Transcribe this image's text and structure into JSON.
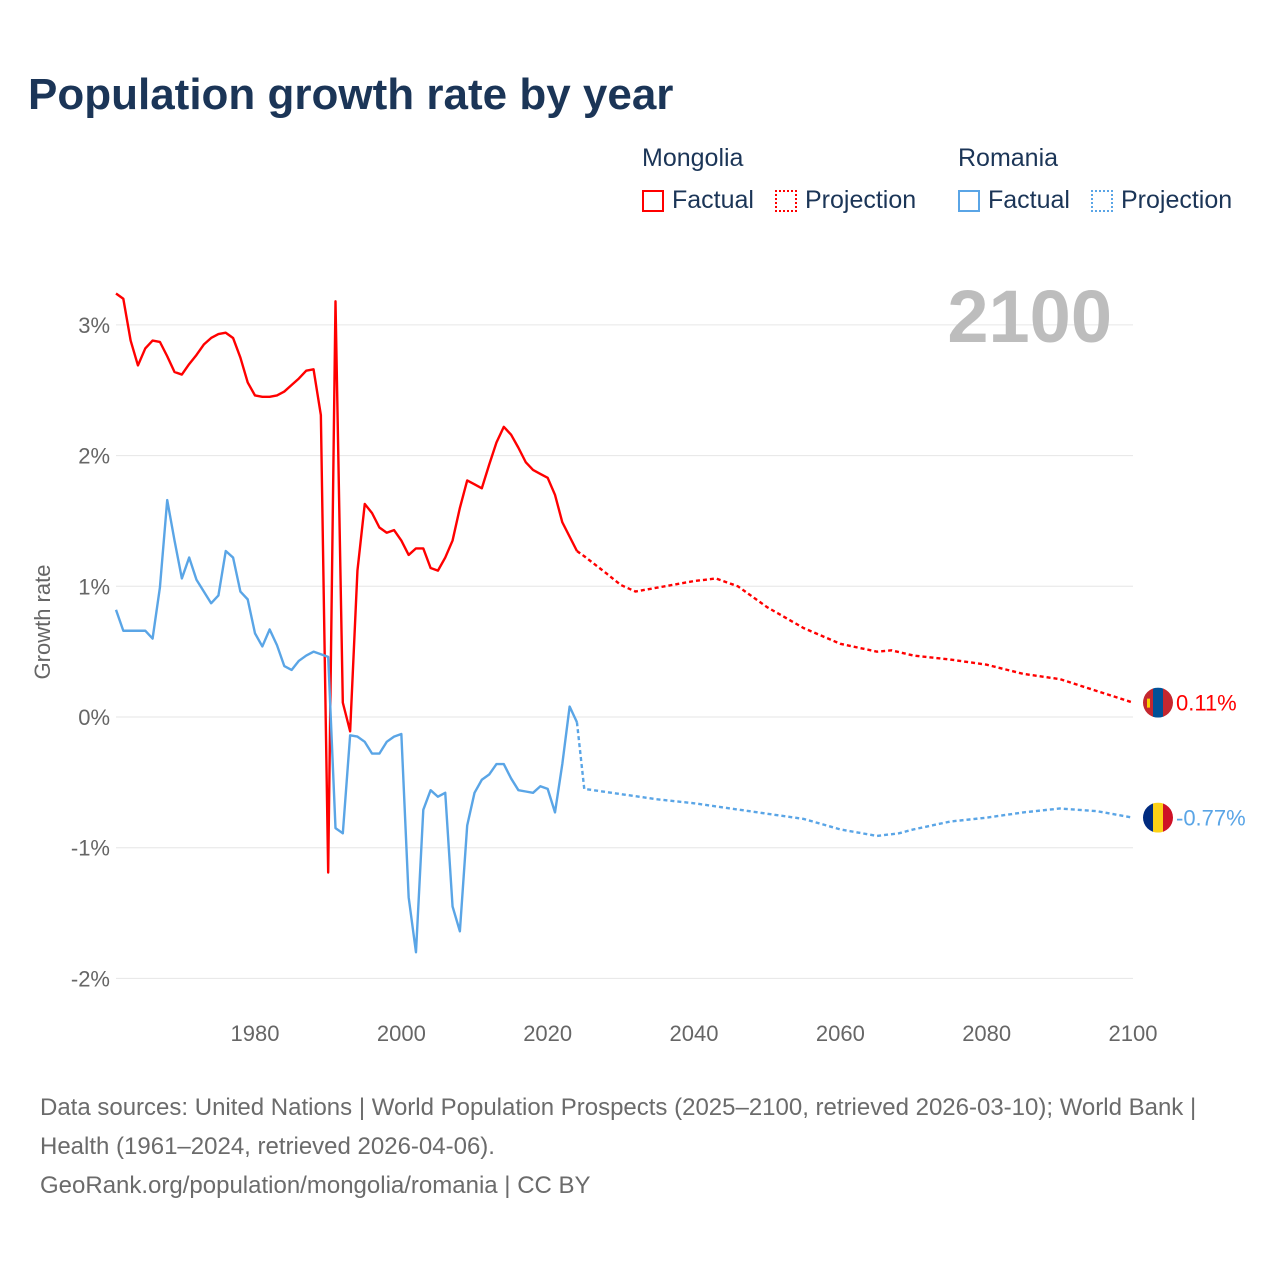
{
  "title": "Population growth rate by year",
  "legend": {
    "groups": [
      {
        "country": "Mongolia",
        "factual": "Factual",
        "projection": "Projection",
        "color": "#ff0000"
      },
      {
        "country": "Romania",
        "factual": "Factual",
        "projection": "Projection",
        "color": "#5aa5e6"
      }
    ]
  },
  "year_label": "2100",
  "footer": {
    "sources": "Data sources: United Nations | World Population Prospects (2025–2100, retrieved 2026-03-10); World Bank | Health (1961–2024, retrieved 2026-04-06).",
    "credit": "GeoRank.org/population/mongolia/romania | CC BY"
  },
  "chart_data": {
    "type": "line",
    "title": "Population growth rate by year",
    "xlabel": "",
    "ylabel": "Growth rate",
    "xlim": [
      1961,
      2100
    ],
    "ylim": [
      -2.2,
      3.3
    ],
    "x_ticks": [
      1980,
      2000,
      2020,
      2040,
      2060,
      2080,
      2100
    ],
    "x_tick_labels": [
      "1980",
      "2000",
      "2020",
      "2040",
      "2060",
      "2080",
      "2100"
    ],
    "y_ticks": [
      3,
      2,
      1,
      0,
      -1,
      -2
    ],
    "y_tick_labels": [
      "3%",
      "2%",
      "1%",
      "0%",
      "-1%",
      "-2%"
    ],
    "grid": true,
    "legend_position": "top-right",
    "series": [
      {
        "name": "Mongolia",
        "color": "#ff0000",
        "end_label": "0.11%",
        "factual": {
          "x": [
            1961,
            1962,
            1963,
            1964,
            1965,
            1966,
            1967,
            1968,
            1969,
            1970,
            1971,
            1972,
            1973,
            1974,
            1975,
            1976,
            1977,
            1978,
            1979,
            1980,
            1981,
            1982,
            1983,
            1984,
            1985,
            1986,
            1987,
            1988,
            1989,
            1990,
            1991,
            1992,
            1993,
            1994,
            1995,
            1996,
            1997,
            1998,
            1999,
            2000,
            2001,
            2002,
            2003,
            2004,
            2005,
            2006,
            2007,
            2008,
            2009,
            2010,
            2011,
            2012,
            2013,
            2014,
            2015,
            2016,
            2017,
            2018,
            2019,
            2020,
            2021,
            2022,
            2023,
            2024
          ],
          "y": [
            3.24,
            3.2,
            2.88,
            2.69,
            2.82,
            2.88,
            2.87,
            2.76,
            2.64,
            2.62,
            2.7,
            2.77,
            2.85,
            2.9,
            2.93,
            2.94,
            2.9,
            2.75,
            2.56,
            2.46,
            2.45,
            2.45,
            2.46,
            2.49,
            2.54,
            2.59,
            2.65,
            2.66,
            2.31,
            -1.19,
            3.18,
            0.11,
            -0.11,
            1.12,
            1.63,
            1.56,
            1.45,
            1.41,
            1.43,
            1.35,
            1.24,
            1.29,
            1.29,
            1.14,
            1.12,
            1.22,
            1.35,
            1.6,
            1.81,
            1.78,
            1.75,
            1.93,
            2.1,
            2.22,
            2.16,
            2.06,
            1.95,
            1.89,
            1.86,
            1.83,
            1.7,
            1.49,
            1.38,
            1.27
          ]
        },
        "projection": {
          "x": [
            2025,
            2028,
            2030,
            2032,
            2035,
            2038,
            2040,
            2043,
            2046,
            2050,
            2055,
            2060,
            2065,
            2067,
            2070,
            2075,
            2080,
            2085,
            2090,
            2095,
            2100
          ],
          "y": [
            1.23,
            1.1,
            1.01,
            0.96,
            0.99,
            1.02,
            1.04,
            1.06,
            1.0,
            0.84,
            0.68,
            0.56,
            0.5,
            0.51,
            0.47,
            0.44,
            0.4,
            0.33,
            0.29,
            0.2,
            0.11
          ]
        }
      },
      {
        "name": "Romania",
        "color": "#5aa5e6",
        "end_label": "-0.77%",
        "factual": {
          "x": [
            1961,
            1962,
            1963,
            1964,
            1965,
            1966,
            1967,
            1968,
            1969,
            1970,
            1971,
            1972,
            1973,
            1974,
            1975,
            1976,
            1977,
            1978,
            1979,
            1980,
            1981,
            1982,
            1983,
            1984,
            1985,
            1986,
            1987,
            1988,
            1989,
            1990,
            1991,
            1992,
            1993,
            1994,
            1995,
            1996,
            1997,
            1998,
            1999,
            2000,
            2001,
            2002,
            2003,
            2004,
            2005,
            2006,
            2007,
            2008,
            2009,
            2010,
            2011,
            2012,
            2013,
            2014,
            2015,
            2016,
            2017,
            2018,
            2019,
            2020,
            2021,
            2022,
            2023,
            2024
          ],
          "y": [
            0.82,
            0.66,
            0.66,
            0.66,
            0.66,
            0.6,
            0.99,
            1.66,
            1.35,
            1.06,
            1.22,
            1.05,
            0.96,
            0.87,
            0.93,
            1.27,
            1.22,
            0.96,
            0.9,
            0.64,
            0.54,
            0.67,
            0.55,
            0.39,
            0.36,
            0.43,
            0.47,
            0.5,
            0.48,
            0.46,
            -0.85,
            -0.89,
            -0.14,
            -0.15,
            -0.19,
            -0.28,
            -0.28,
            -0.19,
            -0.15,
            -0.13,
            -1.38,
            -1.8,
            -0.71,
            -0.56,
            -0.61,
            -0.58,
            -1.45,
            -1.64,
            -0.83,
            -0.58,
            -0.48,
            -0.44,
            -0.36,
            -0.36,
            -0.47,
            -0.56,
            -0.57,
            -0.58,
            -0.53,
            -0.55,
            -0.73,
            -0.36,
            0.08,
            -0.04
          ]
        },
        "projection": {
          "x": [
            2025,
            2030,
            2035,
            2040,
            2045,
            2050,
            2055,
            2060,
            2065,
            2068,
            2070,
            2075,
            2080,
            2085,
            2090,
            2095,
            2100
          ],
          "y": [
            -0.55,
            -0.59,
            -0.63,
            -0.66,
            -0.7,
            -0.74,
            -0.78,
            -0.86,
            -0.91,
            -0.89,
            -0.86,
            -0.8,
            -0.77,
            -0.73,
            -0.7,
            -0.72,
            -0.77
          ]
        }
      }
    ]
  }
}
